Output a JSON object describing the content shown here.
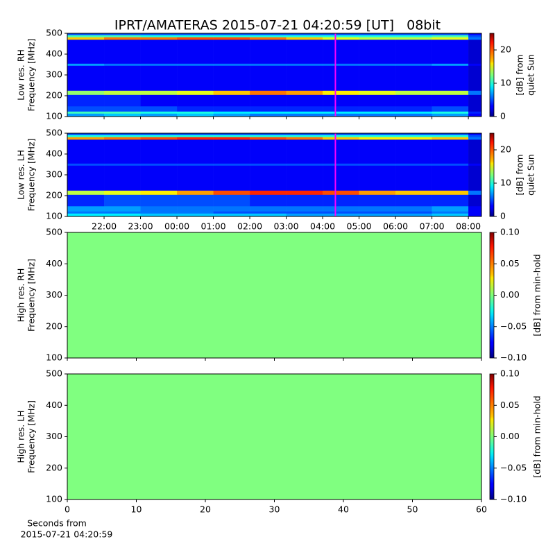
{
  "chart_data": [
    {
      "type": "heatmap",
      "title": "IPRT/AMATERAS 2015-07-21 04:20:59 [UT]   08bit",
      "ylabel": [
        "Low res. RH",
        "Frequency [MHz]"
      ],
      "colorbar_label": [
        "[dB] from",
        "quiet Sun"
      ],
      "xlim": [
        20.99,
        32.36
      ],
      "ylim": [
        100,
        500
      ],
      "yticks": [
        100,
        200,
        300,
        400,
        500
      ],
      "clim": [
        0,
        25
      ],
      "cticks": [
        0,
        10,
        20
      ],
      "marker_x": 28.35,
      "marker_color": "#ff00ff",
      "x_edges": [
        20.99,
        22,
        23,
        24,
        25,
        26,
        27,
        28,
        29,
        30,
        31,
        32,
        32.36
      ],
      "y_edges": [
        100,
        115,
        125,
        150,
        205,
        225,
        345,
        355,
        470,
        482,
        492,
        500
      ],
      "z": [
        [
          7,
          8,
          7,
          8,
          7,
          6,
          6,
          6,
          6,
          6,
          7,
          3
        ],
        [
          11,
          11,
          10,
          10,
          9,
          9,
          9,
          9,
          9,
          9,
          10,
          4
        ],
        [
          5,
          5,
          5,
          4,
          4,
          4,
          4,
          4,
          4,
          4,
          5,
          2
        ],
        [
          4,
          4,
          3,
          3,
          3,
          3,
          3,
          3,
          3,
          3,
          3,
          2
        ],
        [
          13,
          14,
          14,
          15,
          17,
          19,
          18,
          16,
          15,
          14,
          14,
          6
        ],
        [
          3,
          3,
          3,
          3,
          3,
          3,
          3,
          3,
          3,
          3,
          3,
          2
        ],
        [
          7,
          6,
          6,
          6,
          6,
          6,
          6,
          6,
          6,
          6,
          7,
          3
        ],
        [
          3,
          3,
          3,
          3,
          3,
          3,
          3,
          3,
          3,
          3,
          3,
          2
        ],
        [
          17,
          19,
          19,
          20,
          20,
          19,
          17,
          15,
          14,
          14,
          15,
          6
        ],
        [
          11,
          11,
          10,
          10,
          10,
          10,
          10,
          10,
          10,
          10,
          11,
          5
        ],
        [
          5,
          5,
          5,
          5,
          5,
          5,
          5,
          5,
          5,
          5,
          5,
          3
        ]
      ]
    },
    {
      "type": "heatmap",
      "ylabel": [
        "Low res. LH",
        "Frequency [MHz]"
      ],
      "colorbar_label": [
        "[dB] from",
        "quiet Sun"
      ],
      "xlim": [
        20.99,
        32.36
      ],
      "xticks": [
        {
          "value": 22,
          "label": "22:00"
        },
        {
          "value": 23,
          "label": "23:00"
        },
        {
          "value": 24,
          "label": "00:00"
        },
        {
          "value": 25,
          "label": "01:00"
        },
        {
          "value": 26,
          "label": "02:00"
        },
        {
          "value": 27,
          "label": "03:00"
        },
        {
          "value": 28,
          "label": "04:00"
        },
        {
          "value": 29,
          "label": "05:00"
        },
        {
          "value": 30,
          "label": "06:00"
        },
        {
          "value": 31,
          "label": "07:00"
        },
        {
          "value": 32,
          "label": "08:00"
        }
      ],
      "ylim": [
        100,
        500
      ],
      "yticks": [
        100,
        200,
        300,
        400,
        500
      ],
      "clim": [
        0,
        25
      ],
      "cticks": [
        0,
        10,
        20
      ],
      "marker_x": 28.35,
      "marker_color": "#ff00ff",
      "x_edges": [
        20.99,
        22,
        23,
        24,
        25,
        26,
        27,
        28,
        29,
        30,
        31,
        32,
        32.36
      ],
      "y_edges": [
        100,
        115,
        125,
        150,
        205,
        225,
        345,
        355,
        470,
        482,
        492,
        500
      ],
      "z": [
        [
          9,
          9,
          8,
          8,
          8,
          8,
          7,
          7,
          7,
          7,
          8,
          3
        ],
        [
          6,
          6,
          6,
          6,
          5,
          5,
          5,
          5,
          5,
          5,
          6,
          3
        ],
        [
          7,
          7,
          6,
          6,
          6,
          6,
          6,
          6,
          6,
          6,
          7,
          3
        ],
        [
          4,
          5,
          5,
          5,
          5,
          4,
          4,
          4,
          4,
          4,
          4,
          2
        ],
        [
          14,
          15,
          16,
          18,
          20,
          21,
          21,
          20,
          18,
          17,
          17,
          6
        ],
        [
          3,
          3,
          3,
          3,
          3,
          3,
          3,
          3,
          3,
          3,
          3,
          2
        ],
        [
          5,
          5,
          5,
          5,
          5,
          5,
          5,
          5,
          5,
          5,
          5,
          3
        ],
        [
          3,
          3,
          3,
          3,
          3,
          3,
          3,
          3,
          3,
          3,
          3,
          2
        ],
        [
          18,
          19,
          20,
          21,
          21,
          20,
          19,
          17,
          16,
          16,
          17,
          6
        ],
        [
          10,
          10,
          10,
          10,
          10,
          10,
          10,
          10,
          10,
          10,
          10,
          5
        ],
        [
          5,
          5,
          5,
          5,
          5,
          5,
          5,
          5,
          5,
          5,
          5,
          3
        ]
      ]
    },
    {
      "type": "heatmap",
      "ylabel": [
        "High res. RH",
        "Frequency [MHz]"
      ],
      "colorbar_label": [
        "[dB] from min-hold"
      ],
      "xlim": [
        0,
        60
      ],
      "ylim": [
        100,
        500
      ],
      "yticks": [
        100,
        200,
        300,
        400,
        500
      ],
      "clim": [
        -0.1,
        0.1
      ],
      "cticks": [
        {
          "value": -0.1,
          "label": "−0.10"
        },
        {
          "value": -0.05,
          "label": "−0.05"
        },
        {
          "value": 0,
          "label": "0.00"
        },
        {
          "value": 0.05,
          "label": "0.05"
        },
        {
          "value": 0.1,
          "label": "0.10"
        }
      ],
      "x_edges": [
        0,
        60
      ],
      "y_edges": [
        100,
        500
      ],
      "z": [
        [
          0
        ]
      ]
    },
    {
      "type": "heatmap",
      "ylabel": [
        "High res. LH",
        "Frequency [MHz]"
      ],
      "colorbar_label": [
        "[dB] from min-hold"
      ],
      "xlabel": [
        "Seconds from",
        "2015-07-21 04:20:59"
      ],
      "xlim": [
        0,
        60
      ],
      "xticks": [
        0,
        10,
        20,
        30,
        40,
        50,
        60
      ],
      "ylim": [
        100,
        500
      ],
      "yticks": [
        100,
        200,
        300,
        400,
        500
      ],
      "clim": [
        -0.1,
        0.1
      ],
      "cticks": [
        {
          "value": -0.1,
          "label": "−0.10"
        },
        {
          "value": -0.05,
          "label": "−0.05"
        },
        {
          "value": 0,
          "label": "0.00"
        },
        {
          "value": 0.05,
          "label": "0.05"
        },
        {
          "value": 0.1,
          "label": "0.10"
        }
      ],
      "x_edges": [
        0,
        60
      ],
      "y_edges": [
        100,
        500
      ],
      "z": [
        [
          0
        ]
      ]
    }
  ]
}
